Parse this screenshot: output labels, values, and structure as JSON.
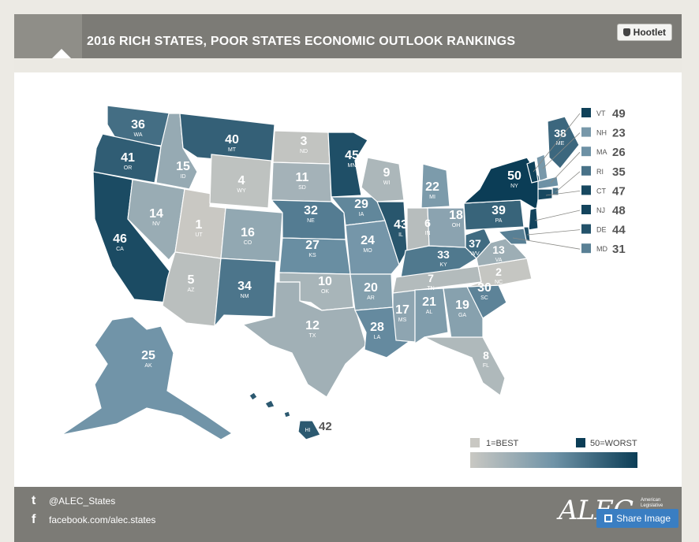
{
  "header": {
    "title": "2016 RICH STATES, POOR STATES ECONOMIC OUTLOOK RANKINGS",
    "hootlet_label": "Hootlet"
  },
  "colors": {
    "best": "#c9c8c3",
    "worst": "#0b3d56",
    "header": "#7c7b76",
    "share": "#3a7ec2"
  },
  "states": [
    {
      "abbr": "WA",
      "rank": 36
    },
    {
      "abbr": "OR",
      "rank": 41
    },
    {
      "abbr": "CA",
      "rank": 46
    },
    {
      "abbr": "ID",
      "rank": 15
    },
    {
      "abbr": "NV",
      "rank": 14
    },
    {
      "abbr": "UT",
      "rank": 1
    },
    {
      "abbr": "AZ",
      "rank": 5
    },
    {
      "abbr": "MT",
      "rank": 40
    },
    {
      "abbr": "WY",
      "rank": 4
    },
    {
      "abbr": "CO",
      "rank": 16
    },
    {
      "abbr": "NM",
      "rank": 34
    },
    {
      "abbr": "ND",
      "rank": 3
    },
    {
      "abbr": "SD",
      "rank": 11
    },
    {
      "abbr": "NE",
      "rank": 32
    },
    {
      "abbr": "KS",
      "rank": 27
    },
    {
      "abbr": "OK",
      "rank": 10
    },
    {
      "abbr": "TX",
      "rank": 12
    },
    {
      "abbr": "MN",
      "rank": 45
    },
    {
      "abbr": "IA",
      "rank": 29
    },
    {
      "abbr": "MO",
      "rank": 24
    },
    {
      "abbr": "AR",
      "rank": 20
    },
    {
      "abbr": "LA",
      "rank": 28
    },
    {
      "abbr": "WI",
      "rank": 9
    },
    {
      "abbr": "IL",
      "rank": 43
    },
    {
      "abbr": "MS",
      "rank": 17
    },
    {
      "abbr": "MI",
      "rank": 22
    },
    {
      "abbr": "IN",
      "rank": 6
    },
    {
      "abbr": "KY",
      "rank": 33
    },
    {
      "abbr": "TN",
      "rank": 7
    },
    {
      "abbr": "AL",
      "rank": 21
    },
    {
      "abbr": "OH",
      "rank": 18
    },
    {
      "abbr": "WV",
      "rank": 37
    },
    {
      "abbr": "GA",
      "rank": 19
    },
    {
      "abbr": "FL",
      "rank": 8
    },
    {
      "abbr": "SC",
      "rank": 30
    },
    {
      "abbr": "NC",
      "rank": 2
    },
    {
      "abbr": "VA",
      "rank": 13
    },
    {
      "abbr": "PA",
      "rank": 39
    },
    {
      "abbr": "NY",
      "rank": 50
    },
    {
      "abbr": "ME",
      "rank": 38
    },
    {
      "abbr": "AK",
      "rank": 25
    },
    {
      "abbr": "HI",
      "rank": 42
    }
  ],
  "callouts": [
    {
      "abbr": "VT",
      "rank": 49
    },
    {
      "abbr": "NH",
      "rank": 23
    },
    {
      "abbr": "MA",
      "rank": 26
    },
    {
      "abbr": "RI",
      "rank": 35
    },
    {
      "abbr": "CT",
      "rank": 47
    },
    {
      "abbr": "NJ",
      "rank": 48
    },
    {
      "abbr": "DE",
      "rank": 44
    },
    {
      "abbr": "MD",
      "rank": 31
    }
  ],
  "hawaii_rank": "42",
  "scale": {
    "best_label": "1=BEST",
    "worst_label": "50=WORST"
  },
  "footer": {
    "twitter": "@ALEC_States",
    "facebook": "facebook.com/alec.states",
    "logo": "ALEC",
    "logo_sub": "American Legislative",
    "share_label": "Share Image"
  }
}
